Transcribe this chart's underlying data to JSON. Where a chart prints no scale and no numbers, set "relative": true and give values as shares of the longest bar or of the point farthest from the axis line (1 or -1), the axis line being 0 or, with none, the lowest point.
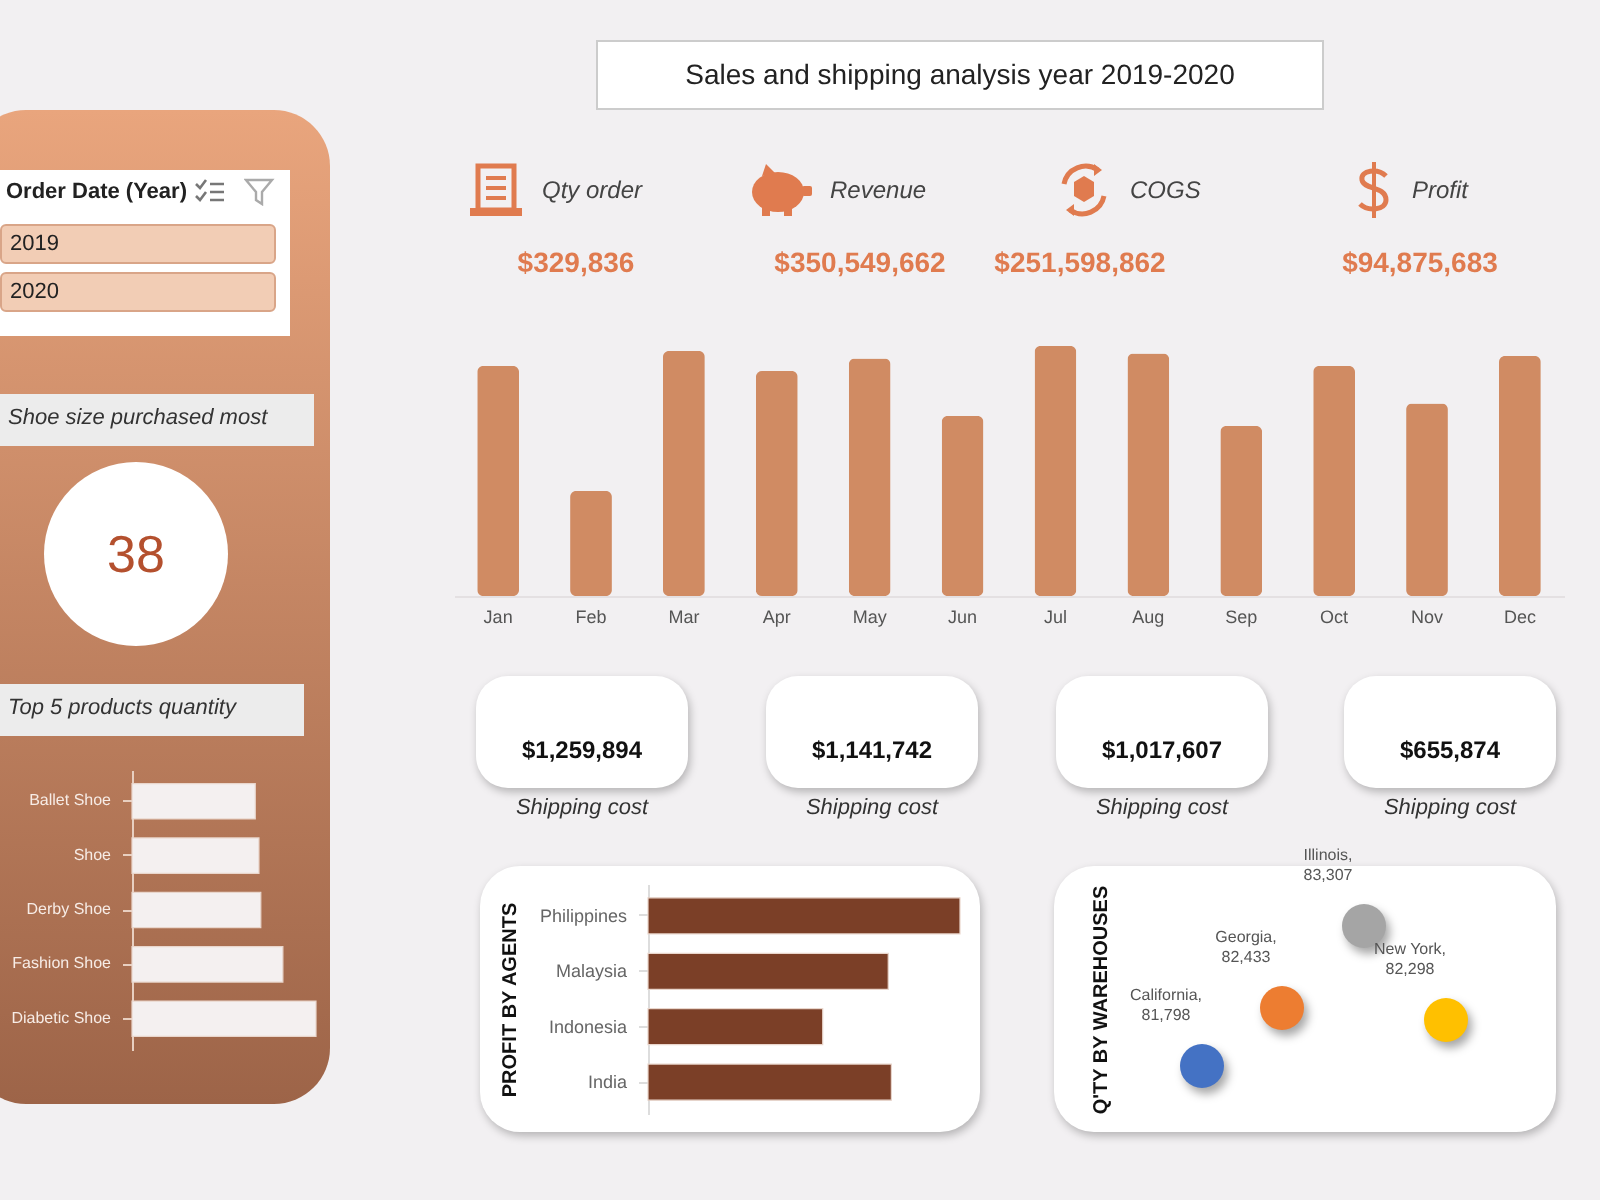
{
  "chart_data": [
    {
      "type": "other",
      "annotations": [
        "Order Date (Year)",
        "2019",
        "2020",
        "Shoe size purchased most",
        "38"
      ]
    },
    {
      "type": "bar",
      "title": "Top 5 products quantity",
      "orientation": "horizontal",
      "relative": true,
      "color": "#f4f0f0",
      "categories": [
        "Ballet Shoe",
        "Shoe",
        "Derby Shoe",
        "Fashion Shoe",
        "Diabetic Shoe"
      ],
      "values": [
        0.67,
        0.69,
        0.7,
        0.82,
        1
      ]
    },
    {
      "type": "other",
      "title": "Sales and shipping analysis year 2019-2020",
      "annotations": [
        "Qty order",
        "$329,836",
        "Revenue",
        "$350,549,662",
        "COGS",
        "$251,598,862",
        "Profit",
        "$94,875,683"
      ]
    },
    {
      "type": "bar",
      "relative": true,
      "color": "#d08b63",
      "categories": [
        "Jan",
        "Feb",
        "Mar",
        "Apr",
        "May",
        "Jun",
        "Jul",
        "Aug",
        "Sep",
        "Oct",
        "Nov",
        "Dec"
      ],
      "values": [
        0.92,
        0.42,
        0.98,
        0.9,
        0.95,
        0.72,
        1,
        0.97,
        0.68,
        0.92,
        0.77,
        0.96
      ]
    },
    {
      "type": "other",
      "annotations": [
        "$1,259,894",
        "Shipping cost",
        "$1,141,742",
        "Shipping cost",
        "$1,017,607",
        "Shipping cost",
        "$655,874",
        "Shipping cost"
      ]
    },
    {
      "type": "bar",
      "ylabel": "PROFIT BY AGENTS",
      "orientation": "horizontal",
      "relative": true,
      "color": "#7b3f27",
      "categories": [
        "Philippines",
        "Malaysia",
        "Indonesia",
        "India"
      ],
      "values": [
        1,
        0.77,
        0.56,
        0.78
      ]
    },
    {
      "type": "other",
      "ylabel": "Q'TY BY WAREHOUSES",
      "annotations": [
        "California, 81,798",
        "Georgia, 82,433",
        "Illinois, 83,307",
        "New York, 82,298"
      ],
      "colors": [
        "#4472c4",
        "#ed7d31",
        "#a5a5a5",
        "#ffc000"
      ]
    }
  ]
}
